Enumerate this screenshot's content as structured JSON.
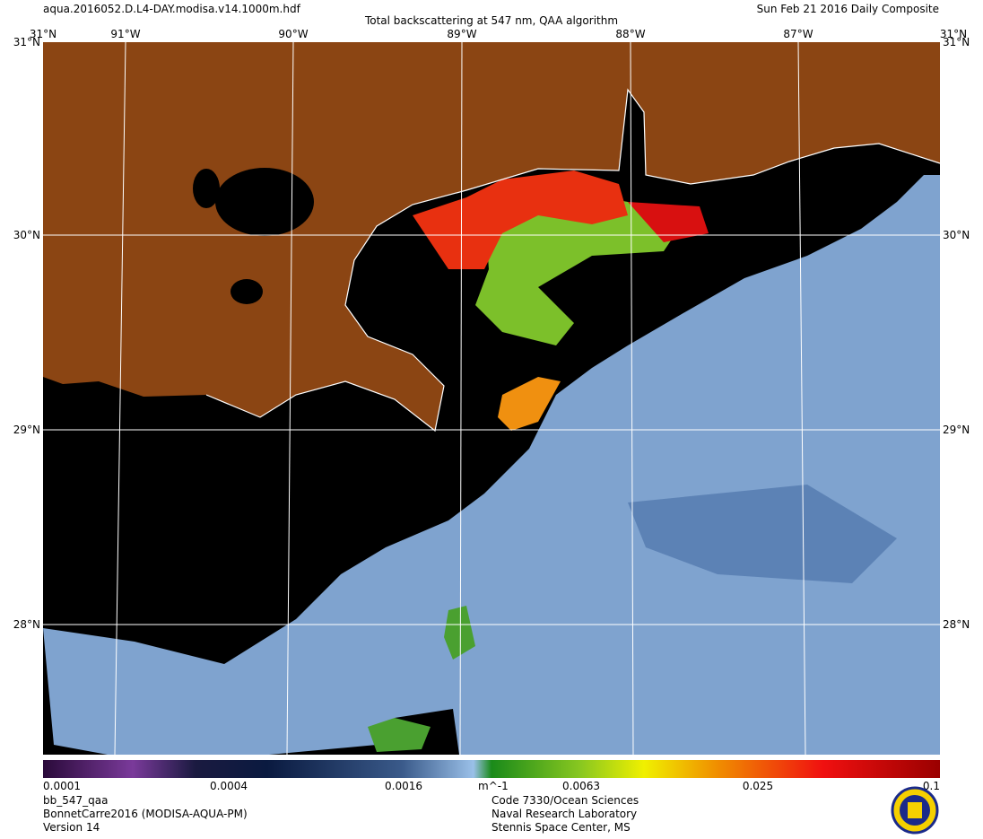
{
  "header": {
    "file": "aqua.2016052.D.L4-DAY.modisa.v14.1000m.hdf",
    "title": "Total backscattering at 547 nm, QAA algorithm",
    "date": "Sun Feb 21 2016 Daily Composite"
  },
  "graticule": {
    "top": [
      "31°N",
      "91°W",
      "90°W",
      "89°W",
      "88°W",
      "87°W",
      "31°N"
    ],
    "left": [
      "31°N",
      "30°N",
      "29°N",
      "28°N"
    ],
    "right": [
      "31°N",
      "30°N",
      "29°N",
      "28°N"
    ]
  },
  "colorbar": {
    "ticks": [
      "0.0001",
      "0.0004",
      "0.0016",
      "0.0063",
      "0.025",
      "0.1"
    ],
    "unit": "m^-1"
  },
  "footer": {
    "left": [
      "bb_547_qaa",
      "BonnetCarre2016 (MODISA-AQUA-PM)",
      "Version 14"
    ],
    "center": [
      "Code 7330/Ocean Sciences",
      "Naval Research Laboratory",
      "Stennis Space Center, MS"
    ]
  }
}
